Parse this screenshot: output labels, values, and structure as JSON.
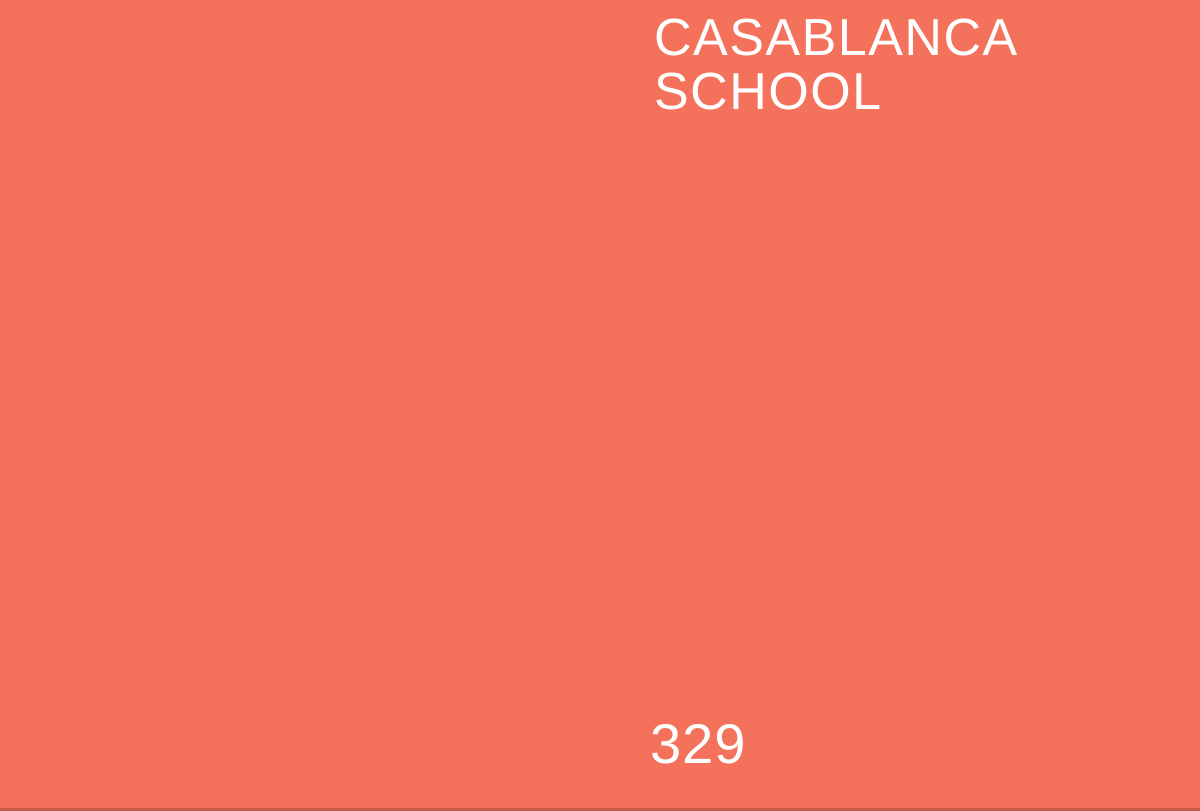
{
  "card": {
    "color_name_line1": "CASABLANCA",
    "color_name_line2": "SCHOOL",
    "color_number": "329",
    "background_color": "#F4715B",
    "bottom_edge_color": "rgba(0,0,0,0.18)",
    "text_color": "#FFFFFF"
  }
}
